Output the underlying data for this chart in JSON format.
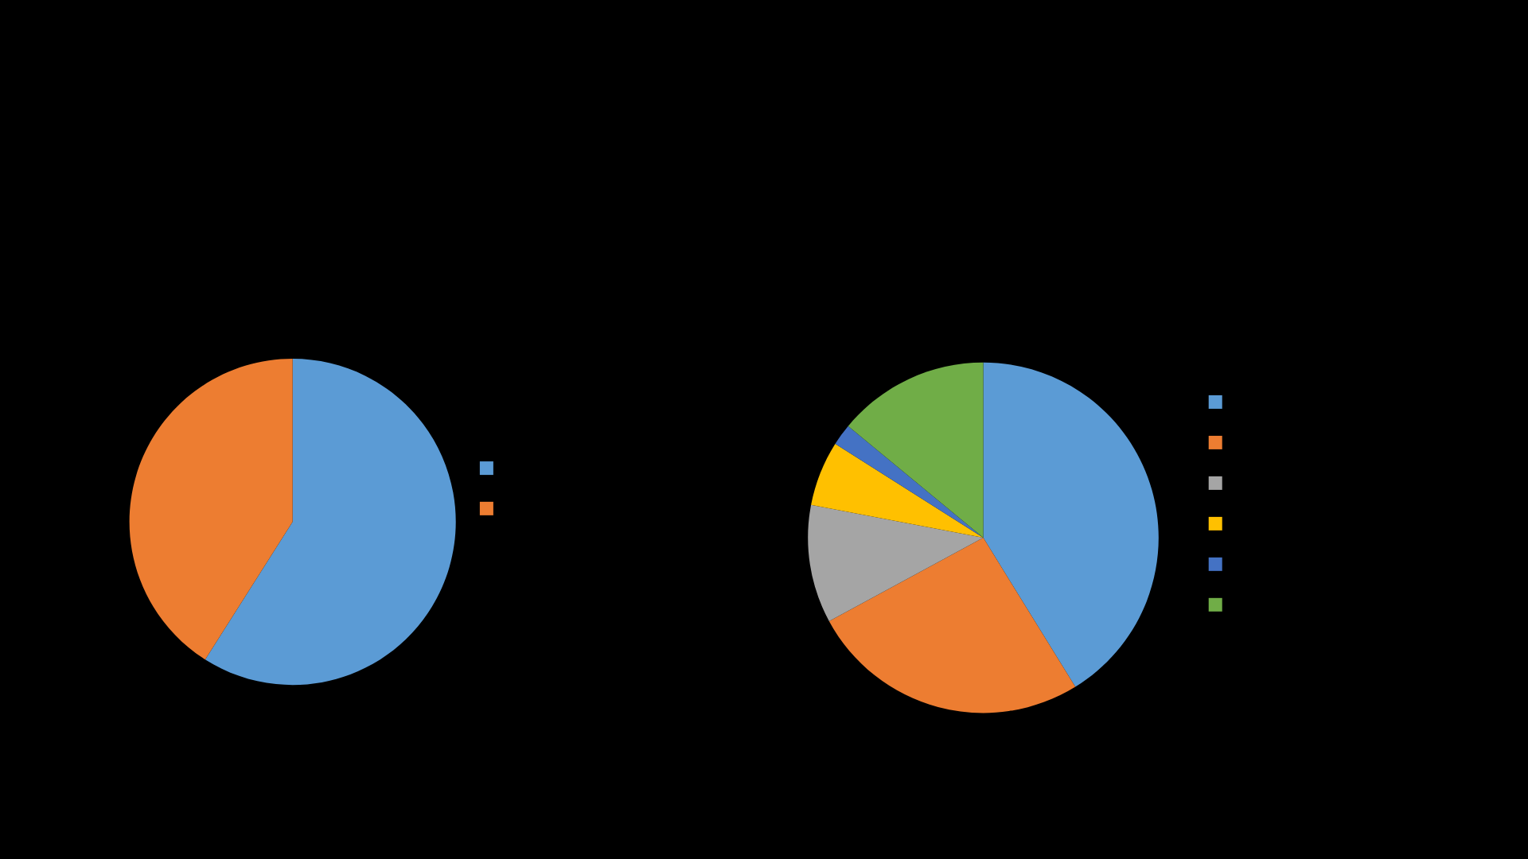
{
  "chart_data": [
    {
      "type": "pie",
      "categories": [
        null,
        null
      ],
      "values": [
        59,
        41
      ],
      "colors": [
        "#5b9bd5",
        "#ed7d31"
      ]
    },
    {
      "type": "pie",
      "categories": [
        null,
        null,
        null,
        null,
        null,
        null
      ],
      "values": [
        41.2,
        25.9,
        10.9,
        6.0,
        2.0,
        14.0
      ],
      "colors": [
        "#5b9bd5",
        "#ed7d31",
        "#a5a5a5",
        "#ffc000",
        "#4472c4",
        "#70ad47"
      ]
    }
  ]
}
